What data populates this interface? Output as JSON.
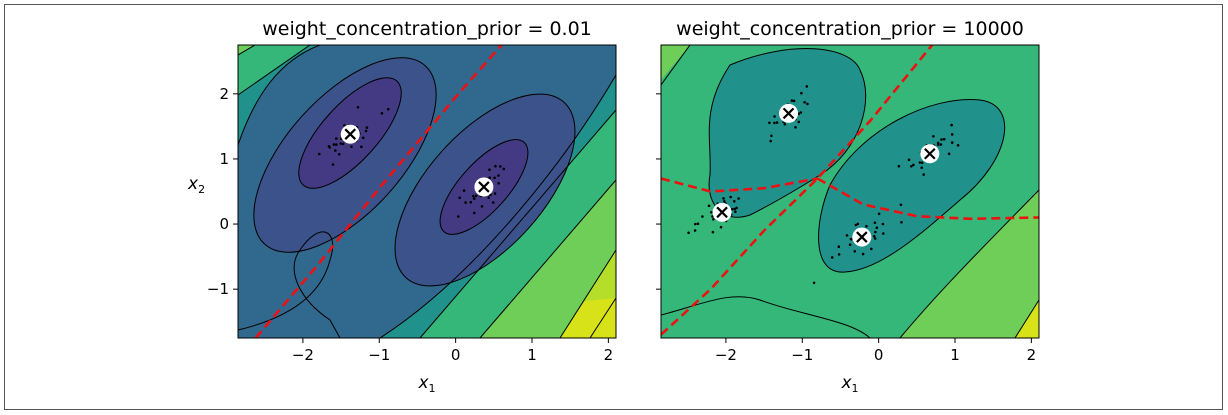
{
  "chart_data": [
    {
      "type": "contour",
      "title": "weight_concentration_prior = 0.01",
      "xlabel": "x",
      "xlabel_sub": "1",
      "ylabel": "x",
      "ylabel_sub": "2",
      "xlim": [
        -2.85,
        2.1
      ],
      "ylim": [
        -1.75,
        2.75
      ],
      "xticks": [
        "−2",
        "−1",
        "0",
        "1",
        "2"
      ],
      "xtick_values": [
        -2,
        -1,
        0,
        1,
        2
      ],
      "yticks": [
        "−1",
        "0",
        "1",
        "2"
      ],
      "ytick_values": [
        -1,
        0,
        1,
        2
      ],
      "centroids": [
        [
          -1.38,
          1.38
        ],
        [
          0.37,
          0.57
        ]
      ],
      "decision_boundary": [
        [
          -2.62,
          -1.75
        ],
        [
          -1.8,
          -0.62
        ],
        [
          -1.0,
          0.55
        ],
        [
          0.0,
          1.95
        ],
        [
          0.6,
          2.75
        ]
      ]
    },
    {
      "type": "contour",
      "title": "weight_concentration_prior = 10000",
      "xlabel": "x",
      "xlabel_sub": "1",
      "xlim": [
        -2.85,
        2.1
      ],
      "ylim": [
        -1.75,
        2.75
      ],
      "xticks": [
        "−2",
        "−1",
        "0",
        "1",
        "2"
      ],
      "xtick_values": [
        -2,
        -1,
        0,
        1,
        2
      ],
      "yticks": [
        "−1",
        "0",
        "1",
        "2"
      ],
      "ytick_values": [
        -1,
        0,
        1,
        2
      ],
      "centroids": [
        [
          -1.18,
          1.7
        ],
        [
          0.67,
          1.08
        ],
        [
          -2.05,
          0.18
        ],
        [
          -0.22,
          -0.2
        ]
      ],
      "decision_boundary_a": [
        [
          -2.85,
          -1.7
        ],
        [
          -2.2,
          -1.0
        ],
        [
          -1.5,
          -0.1
        ],
        [
          -0.8,
          0.7
        ],
        [
          -0.1,
          1.6
        ],
        [
          0.7,
          2.75
        ]
      ],
      "decision_boundary_b": [
        [
          -2.85,
          0.7
        ],
        [
          -2.2,
          0.5
        ],
        [
          -1.5,
          0.55
        ],
        [
          -0.8,
          0.7
        ]
      ],
      "decision_boundary_c": [
        [
          -0.8,
          0.7
        ],
        [
          -0.2,
          0.3
        ],
        [
          0.5,
          0.12
        ],
        [
          1.2,
          0.08
        ],
        [
          2.1,
          0.1
        ]
      ]
    }
  ],
  "colors": {
    "level0": "#443983",
    "level1": "#3b528b",
    "level2": "#31688e",
    "level3": "#21918c",
    "level4": "#35b779",
    "level5": "#6ece58",
    "level6": "#b5de2b",
    "level7": "#d8e219",
    "boundary": "#ee1111"
  }
}
